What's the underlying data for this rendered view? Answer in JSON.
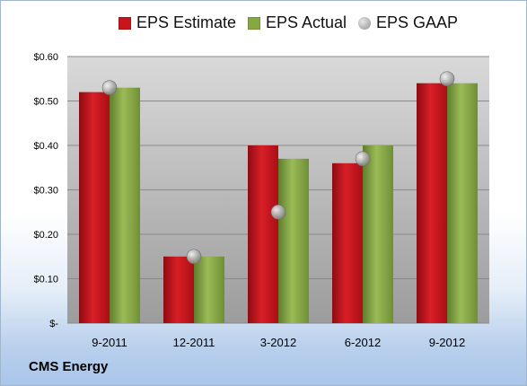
{
  "company": "CMS Energy",
  "colors": {
    "estimate": "#c8141c",
    "actual": "#86a844",
    "gaap": "#a0a0a0"
  },
  "legend": [
    {
      "label": "EPS Estimate",
      "kind": "square",
      "color": "#c8141c"
    },
    {
      "label": "EPS Actual",
      "kind": "square",
      "color": "#86a844"
    },
    {
      "label": "EPS GAAP",
      "kind": "ball",
      "color": "#a0a0a0"
    }
  ],
  "chart_data": {
    "type": "bar",
    "categories": [
      "9-2011",
      "12-2011",
      "3-2012",
      "6-2012",
      "9-2012"
    ],
    "series": [
      {
        "name": "EPS Estimate",
        "values": [
          0.52,
          0.15,
          0.4,
          0.36,
          0.54
        ]
      },
      {
        "name": "EPS Actual",
        "values": [
          0.53,
          0.15,
          0.37,
          0.4,
          0.54
        ]
      },
      {
        "name": "EPS GAAP",
        "type": "scatter",
        "values": [
          0.53,
          0.15,
          0.25,
          0.37,
          0.55
        ]
      }
    ],
    "yticks": [
      "$-",
      "$0.10",
      "$0.20",
      "$0.30",
      "$0.40",
      "$0.50",
      "$0.60"
    ],
    "ylim": [
      0,
      0.6
    ],
    "grid": true,
    "legend_position": "top"
  }
}
